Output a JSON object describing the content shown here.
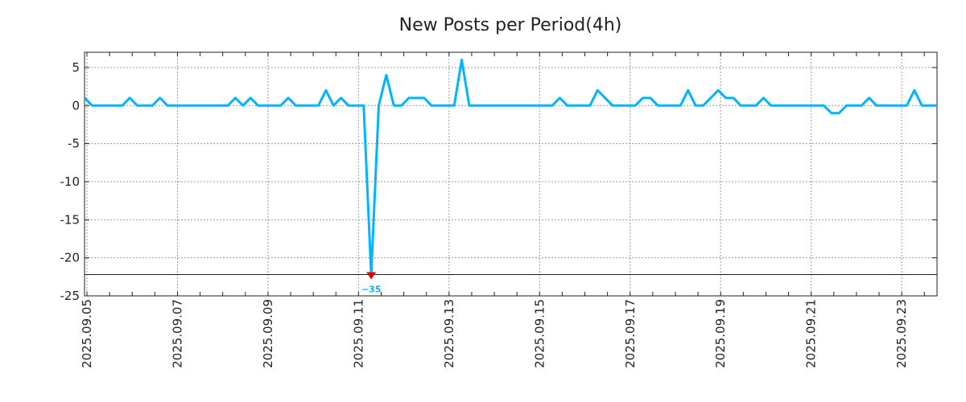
{
  "chart_data": {
    "type": "line",
    "title": "New Posts per Period(4h)",
    "xlabel": "",
    "ylabel": "",
    "period": "4h",
    "ylim": [
      -25,
      7
    ],
    "yticks": [
      5,
      0,
      -5,
      -10,
      -15,
      -20,
      -25
    ],
    "xticks": [
      {
        "label": "2025.09.05",
        "index": 0.32
      },
      {
        "label": "2025.09.07",
        "index": 12.32
      },
      {
        "label": "2025.09.09",
        "index": 24.32
      },
      {
        "label": "2025.09.11",
        "index": 36.32
      },
      {
        "label": "2025.09.13",
        "index": 48.32
      },
      {
        "label": "2025.09.15",
        "index": 60.32
      },
      {
        "label": "2025.09.17",
        "index": 72.32
      },
      {
        "label": "2025.09.19",
        "index": 84.32
      },
      {
        "label": "2025.09.21",
        "index": 96.32
      },
      {
        "label": "2025.09.23",
        "index": 108.32
      }
    ],
    "xlim": [
      0,
      113
    ],
    "grid": true,
    "clip_floor": -22.2,
    "clipped_point": {
      "index": 38,
      "value": -35,
      "label": "−35"
    },
    "series": [
      {
        "name": "New Posts",
        "color": "#00b4ff",
        "values": [
          1,
          0,
          0,
          0,
          0,
          0,
          1,
          0,
          0,
          0,
          1,
          0,
          0,
          0,
          0,
          0,
          0,
          0,
          0,
          0,
          1,
          0,
          1,
          0,
          0,
          0,
          0,
          1,
          0,
          0,
          0,
          0,
          2,
          0,
          1,
          0,
          0,
          0,
          -35,
          0,
          4,
          0,
          0,
          1,
          1,
          1,
          0,
          0,
          0,
          0,
          6,
          0,
          0,
          0,
          0,
          0,
          0,
          0,
          0,
          0,
          0,
          0,
          0,
          1,
          0,
          0,
          0,
          0,
          2,
          1,
          0,
          0,
          0,
          0,
          1,
          1,
          0,
          0,
          0,
          0,
          2,
          0,
          0,
          1,
          2,
          1,
          1,
          0,
          0,
          0,
          1,
          0,
          0,
          0,
          0,
          0,
          0,
          0,
          0,
          -1,
          -1,
          0,
          0,
          0,
          1,
          0,
          0,
          0,
          0,
          0,
          2,
          0,
          0,
          0
        ]
      }
    ],
    "colors": {
      "marker": "#dd0000",
      "grid": "#999999",
      "axis": "#222222"
    }
  }
}
